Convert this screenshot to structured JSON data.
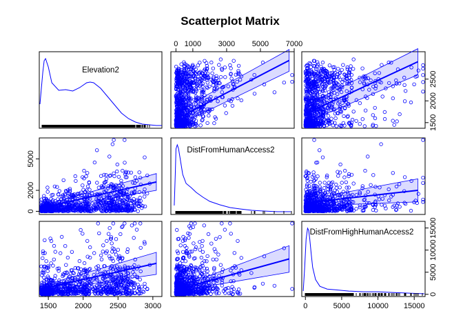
{
  "chart_data": {
    "type": "scatter",
    "title": "Scatterplot Matrix",
    "variables": [
      {
        "name": "Elevation2",
        "range": [
          1370,
          3130
        ],
        "ticks": [
          1500,
          2000,
          2500,
          3000
        ],
        "tick_labels": [
          "1500",
          "2000",
          "2500",
          "3000"
        ]
      },
      {
        "name": "DistFromHumanAccess2",
        "range": [
          -300,
          7000
        ],
        "ticks": [
          0,
          1000,
          3000,
          5000,
          7000
        ],
        "tick_labels": [
          "0",
          "1000",
          "3000",
          "5000",
          "7000"
        ]
      },
      {
        "name": "DistFromHighHumanAccess2",
        "range": [
          -500,
          16500
        ],
        "ticks": [
          0,
          5000,
          10000,
          15000
        ],
        "tick_labels": [
          "0",
          "5000",
          "10000",
          "15000"
        ]
      }
    ],
    "axes": {
      "left": {
        "ticks": [
          0,
          2000,
          5000
        ],
        "tick_labels": [
          "0",
          "2000",
          "5000"
        ]
      },
      "right_top": {
        "ticks": [
          1500,
          2000,
          2500
        ],
        "tick_labels": [
          "1500",
          "2000",
          "2500"
        ]
      },
      "right_bottom": {
        "ticks": [
          0,
          5000,
          10000,
          15000
        ],
        "tick_labels": [
          "0",
          "5000",
          "10000",
          "15000"
        ]
      }
    },
    "density_curves": [
      {
        "variable": "Elevation2",
        "x": [
          1380,
          1420,
          1440,
          1460,
          1500,
          1550,
          1650,
          1750,
          1850,
          1950,
          2050,
          2100,
          2150,
          2250,
          2350,
          2450,
          2550,
          2650,
          2750,
          2850,
          2950,
          3050,
          3130
        ],
        "y": [
          0.32,
          0.78,
          0.95,
          0.98,
          0.86,
          0.63,
          0.52,
          0.53,
          0.51,
          0.56,
          0.63,
          0.64,
          0.63,
          0.55,
          0.43,
          0.31,
          0.19,
          0.11,
          0.06,
          0.03,
          0.02,
          0.01,
          0.01
        ]
      },
      {
        "variable": "DistFromHumanAccess2",
        "x": [
          -100,
          -40,
          0,
          80,
          150,
          250,
          400,
          600,
          900,
          1200,
          1600,
          2000,
          2600,
          3200,
          3800,
          4500,
          5200,
          6000,
          6800
        ],
        "y": [
          0.1,
          0.55,
          0.92,
          0.98,
          0.93,
          0.78,
          0.55,
          0.42,
          0.36,
          0.29,
          0.22,
          0.16,
          0.11,
          0.07,
          0.05,
          0.03,
          0.02,
          0.01,
          0.01
        ]
      },
      {
        "variable": "DistFromHighHumanAccess2",
        "x": [
          -300,
          -100,
          100,
          300,
          450,
          600,
          800,
          1000,
          1400,
          2000,
          3000,
          4000,
          5000,
          6000,
          8000,
          10000,
          12000,
          14000,
          16400
        ],
        "y": [
          0.05,
          0.4,
          0.82,
          0.98,
          0.95,
          0.82,
          0.6,
          0.4,
          0.22,
          0.12,
          0.08,
          0.07,
          0.06,
          0.05,
          0.04,
          0.04,
          0.03,
          0.02,
          0.01
        ]
      }
    ],
    "regression_bands": [
      {
        "row": 0,
        "col": 1,
        "x": [
          0,
          6700
        ],
        "fit": [
          1580,
          2930
        ],
        "lower": [
          1420,
          2680
        ],
        "upper": [
          1740,
          3180
        ]
      },
      {
        "row": 0,
        "col": 2,
        "x": [
          0,
          15500
        ],
        "fit": [
          1700,
          2900
        ],
        "lower": [
          1500,
          2600
        ],
        "upper": [
          1900,
          3200
        ]
      },
      {
        "row": 1,
        "col": 0,
        "x": [
          1380,
          3050
        ],
        "fit": [
          300,
          2800
        ],
        "lower": [
          100,
          2000
        ],
        "upper": [
          500,
          3600
        ]
      },
      {
        "row": 1,
        "col": 2,
        "x": [
          0,
          15500
        ],
        "fit": [
          800,
          2000
        ],
        "lower": [
          500,
          900
        ],
        "upper": [
          1100,
          3100
        ]
      },
      {
        "row": 2,
        "col": 0,
        "x": [
          1380,
          3050
        ],
        "fit": [
          1200,
          7000
        ],
        "lower": [
          600,
          4500
        ],
        "upper": [
          1800,
          9500
        ]
      },
      {
        "row": 2,
        "col": 1,
        "x": [
          0,
          6700
        ],
        "fit": [
          1000,
          8000
        ],
        "lower": [
          600,
          5000
        ],
        "upper": [
          1400,
          11000
        ]
      }
    ],
    "grid": false,
    "legend": "none"
  }
}
